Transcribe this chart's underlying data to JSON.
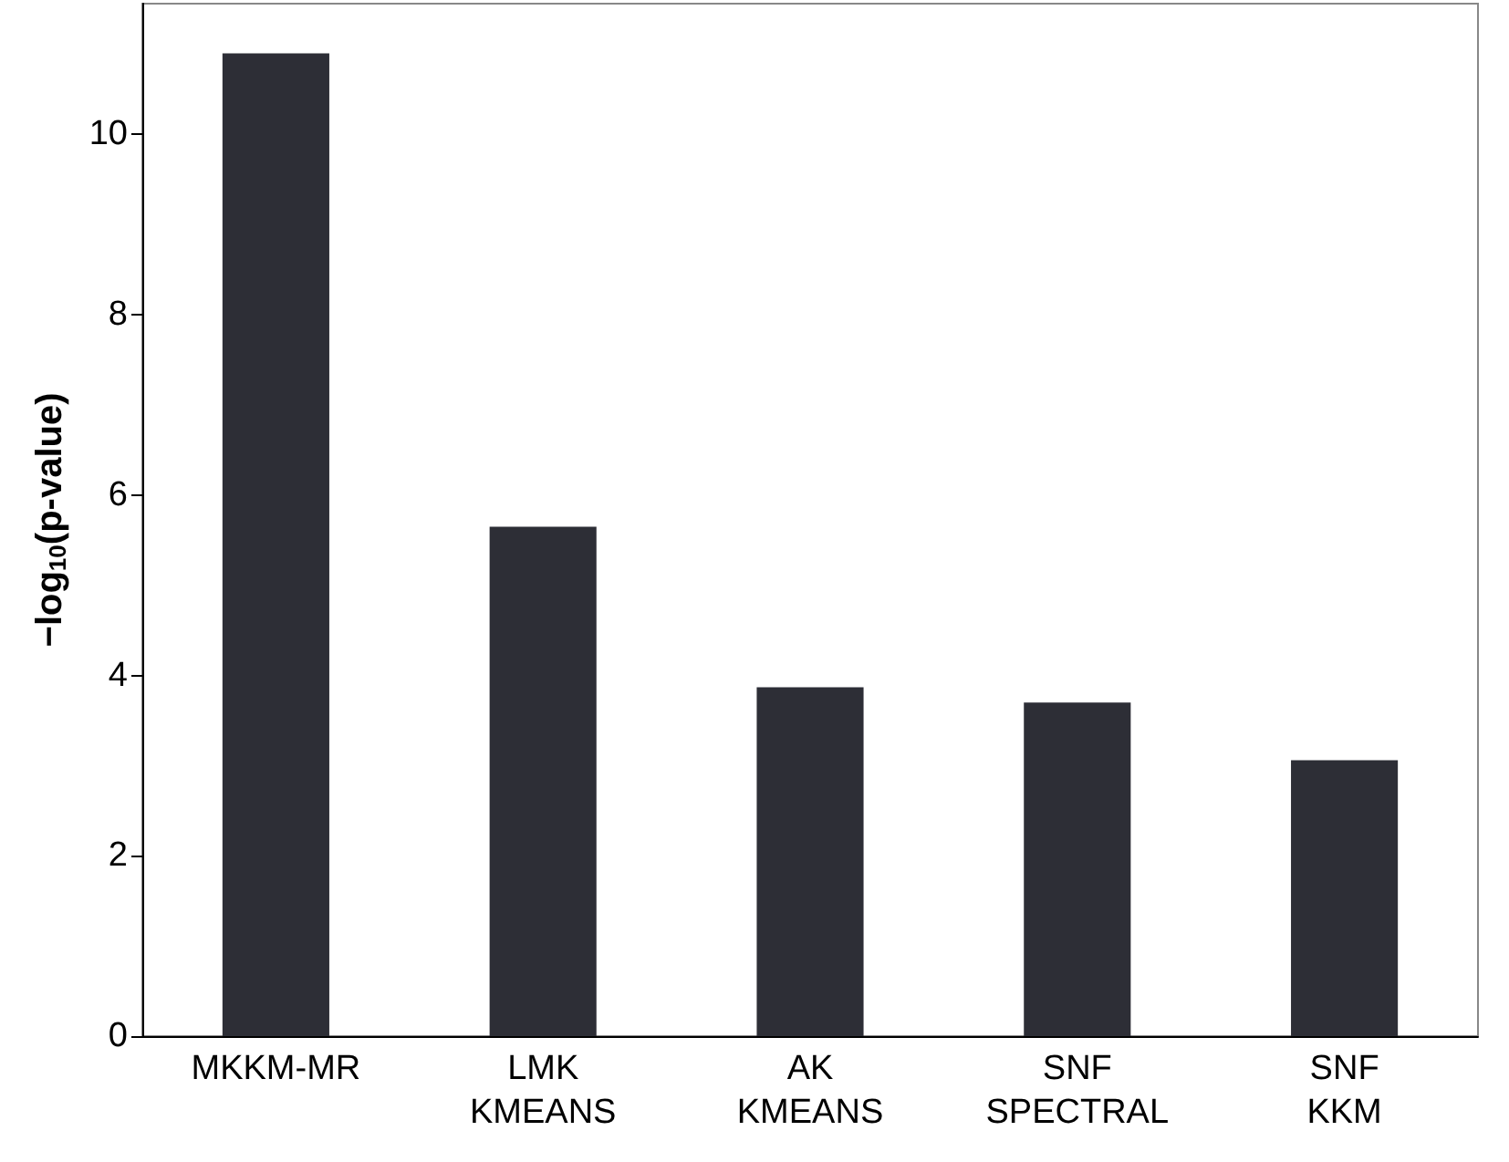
{
  "chart_data": {
    "type": "bar",
    "ylabel": "−log$_{10}$(p-value)",
    "categories": [
      "MKKM-MR",
      "LMK\nKMEANS",
      "AK\nKMEANS",
      "SNF\nSPECTRAL",
      "SNF\nKKM"
    ],
    "values": [
      10.9,
      5.65,
      3.87,
      3.7,
      3.06
    ],
    "color": "#2d2e36",
    "ylim": [
      0,
      11.45
    ],
    "yticks": [
      0,
      2,
      4,
      6,
      8,
      10
    ],
    "grid": false
  }
}
